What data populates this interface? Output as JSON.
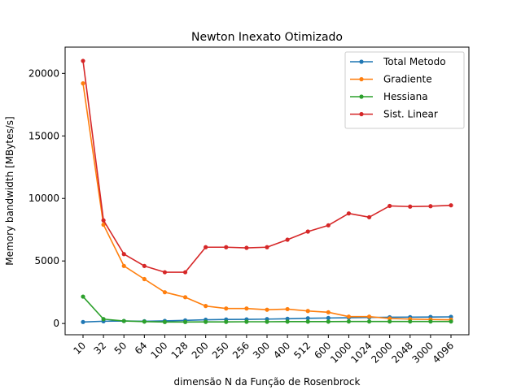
{
  "chart_data": {
    "type": "line",
    "title": "Newton Inexato Otimizado",
    "xlabel": "dimensão N da Função de Rosenbrock",
    "ylabel": "Memory bandwidth [MBytes/s]",
    "categories": [
      "10",
      "32",
      "50",
      "64",
      "100",
      "128",
      "200",
      "250",
      "256",
      "300",
      "400",
      "512",
      "600",
      "1000",
      "1024",
      "2000",
      "2048",
      "3000",
      "4096"
    ],
    "yticks": [
      0,
      5000,
      10000,
      15000,
      20000
    ],
    "ylim": [
      -900,
      22100
    ],
    "grid": false,
    "legend_position": "top-right",
    "series": [
      {
        "name": "Total Metodo",
        "color": "#1f77b4",
        "values": [
          120,
          180,
          200,
          180,
          210,
          250,
          300,
          320,
          330,
          350,
          380,
          420,
          440,
          460,
          480,
          500,
          510,
          520,
          530
        ]
      },
      {
        "name": "Gradiente",
        "color": "#ff7f0e",
        "values": [
          19200,
          7900,
          4600,
          3550,
          2500,
          2100,
          1400,
          1200,
          1200,
          1100,
          1150,
          1000,
          900,
          550,
          550,
          400,
          350,
          320,
          300
        ]
      },
      {
        "name": "Hessiana",
        "color": "#2ca02c",
        "values": [
          2150,
          350,
          200,
          150,
          120,
          120,
          130,
          130,
          140,
          140,
          150,
          150,
          150,
          160,
          160,
          160,
          160,
          160,
          160
        ]
      },
      {
        "name": "Sist. Linear",
        "color": "#d62728",
        "values": [
          21000,
          8250,
          5550,
          4600,
          4100,
          4100,
          6100,
          6100,
          6050,
          6100,
          6700,
          7350,
          7850,
          8800,
          8500,
          9400,
          9350,
          9380,
          9450
        ]
      }
    ]
  }
}
